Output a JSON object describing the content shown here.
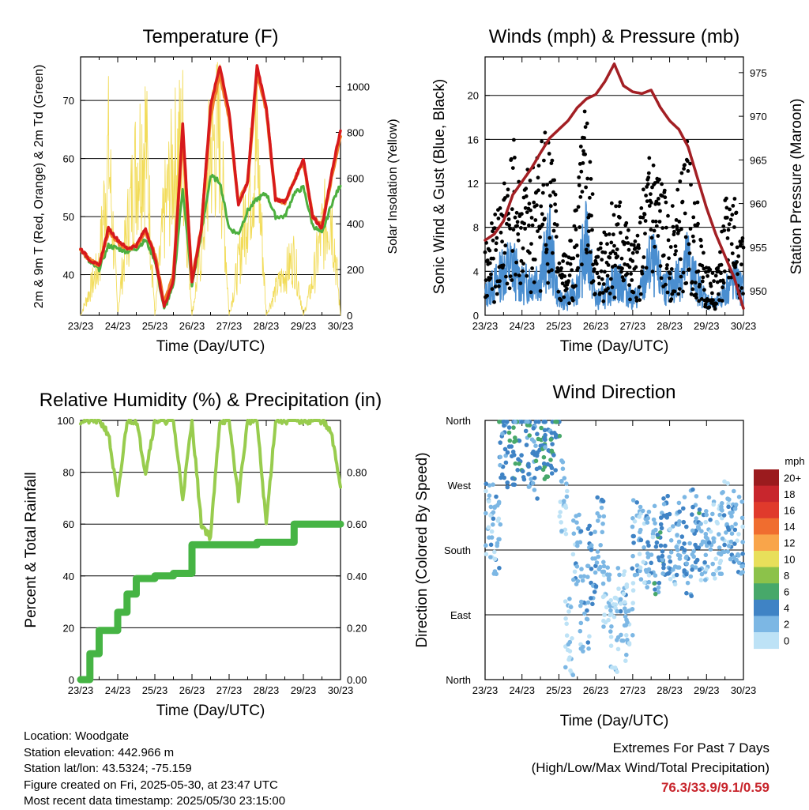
{
  "info": {
    "location": "Location: Woodgate",
    "elevation": "Station elevation: 442.966 m",
    "latlon": "Station lat/lon: 43.5324; -75.159",
    "created": "Figure created on Fri, 2025-05-30, at 23:47 UTC",
    "recent": "Most recent data timestamp: 2025/05/30 23:15:00"
  },
  "extremes": {
    "title": "Extremes For Past 7 Days",
    "subtitle": "(High/Low/Max Wind/Total Precipitation)",
    "values": "76.3/33.9/9.1/0.59"
  },
  "colors": {
    "temp2m": "#d7191c",
    "temp9m": "#f07f2a",
    "dewpoint": "#4daf3f",
    "solar": "#f2dc5a",
    "wind": "#4a8ed0",
    "gust": "#000000",
    "pressure": "#a31f24",
    "rh": "#98cc4e",
    "precip": "#46b444"
  },
  "chart_data": [
    {
      "type": "line",
      "title": "Temperature (F)",
      "xlabel": "Time (Day/UTC)",
      "ylabel": "2m & 9m T (Red, Orange) & 2m Td (Green)",
      "y2label": "Solar Insolation (Yellow)",
      "x_ticks": [
        "23/23",
        "24/23",
        "25/23",
        "26/23",
        "27/23",
        "28/23",
        "29/23",
        "30/23"
      ],
      "ylim": [
        33,
        77.5
      ],
      "yticks": [
        40,
        50,
        60,
        70
      ],
      "y2lim": [
        0,
        1130
      ],
      "y2ticks": [
        0,
        200,
        400,
        600,
        800,
        1000
      ],
      "x": [
        0,
        0.25,
        0.5,
        0.75,
        1.0,
        1.25,
        1.5,
        1.75,
        2.0,
        2.25,
        2.5,
        2.75,
        3.0,
        3.25,
        3.5,
        3.75,
        4.0,
        4.25,
        4.5,
        4.75,
        5.0,
        5.25,
        5.5,
        5.75,
        6.0,
        6.25,
        6.5,
        6.75,
        7.0
      ],
      "series": [
        {
          "name": "2m T",
          "values": [
            44.5,
            42.5,
            41.5,
            48.0,
            46.0,
            44.5,
            45.0,
            48.0,
            43.0,
            34.5,
            39.0,
            66.0,
            38.5,
            48.0,
            69.0,
            76.0,
            68.0,
            52.0,
            56.0,
            76.0,
            69.0,
            53.0,
            52.5,
            56.0,
            60.0,
            50.0,
            48.0,
            57.0,
            65.0
          ]
        },
        {
          "name": "9m T",
          "values": [
            44.5,
            42.5,
            41.5,
            47.5,
            45.5,
            44.5,
            45.0,
            47.5,
            43.5,
            35.0,
            40.0,
            64.0,
            39.0,
            48.0,
            67.5,
            74.5,
            67.0,
            52.5,
            56.0,
            74.5,
            68.5,
            53.0,
            52.5,
            56.0,
            59.5,
            50.0,
            48.5,
            56.5,
            64.0
          ]
        },
        {
          "name": "2m Td",
          "values": [
            44.5,
            42.0,
            41.0,
            45.0,
            44.5,
            44.0,
            44.5,
            46.0,
            42.5,
            34.0,
            38.0,
            55.0,
            38.0,
            47.0,
            57.0,
            56.0,
            48.0,
            47.0,
            51.0,
            53.0,
            54.0,
            50.0,
            50.0,
            54.0,
            55.0,
            48.5,
            47.0,
            52.0,
            55.5
          ]
        },
        {
          "name": "Solar",
          "values": [
            0,
            150,
            300,
            980,
            20,
            500,
            900,
            1100,
            0,
            600,
            900,
            1050,
            0,
            400,
            1000,
            1080,
            0,
            300,
            700,
            1000,
            0,
            150,
            250,
            350,
            0,
            200,
            500,
            650,
            0
          ]
        }
      ]
    },
    {
      "type": "scatter",
      "title": "Winds (mph) & Pressure (mb)",
      "xlabel": "Time (Day/UTC)",
      "ylabel": "Sonic Wind & Gust (Blue, Black)",
      "y2label": "Station Pressure (Maroon)",
      "x_ticks": [
        "23/23",
        "24/23",
        "25/23",
        "26/23",
        "27/23",
        "28/23",
        "29/23",
        "30/23"
      ],
      "ylim": [
        0,
        23.5
      ],
      "yticks": [
        0,
        4,
        8,
        12,
        16,
        20
      ],
      "y2lim": [
        947.2,
        976.8
      ],
      "y2ticks": [
        950,
        955,
        960,
        965,
        970,
        975
      ],
      "x": [
        0,
        0.25,
        0.5,
        0.75,
        1.0,
        1.25,
        1.5,
        1.75,
        2.0,
        2.25,
        2.5,
        2.75,
        3.0,
        3.25,
        3.5,
        3.75,
        4.0,
        4.25,
        4.5,
        4.75,
        5.0,
        5.25,
        5.5,
        5.75,
        6.0,
        6.25,
        6.5,
        6.75,
        7.0
      ],
      "series": [
        {
          "name": "Wind",
          "values": [
            2.0,
            3.0,
            4.5,
            5.0,
            3.0,
            3.5,
            4.0,
            7.0,
            1.5,
            1.5,
            3.0,
            7.5,
            1.5,
            2.0,
            3.5,
            3.0,
            1.5,
            2.5,
            5.5,
            3.5,
            2.5,
            4.0,
            5.5,
            3.0,
            1.5,
            1.0,
            2.5,
            3.5,
            2.5
          ]
        },
        {
          "name": "Gust",
          "values": [
            4.5,
            6.0,
            8.5,
            11.0,
            8.0,
            9.5,
            11.0,
            14.0,
            4.0,
            4.0,
            8.0,
            14.0,
            4.0,
            6.0,
            8.0,
            7.0,
            4.0,
            7.0,
            11.0,
            9.0,
            6.0,
            8.0,
            11.0,
            7.0,
            3.0,
            2.5,
            7.0,
            8.5,
            5.0
          ]
        },
        {
          "name": "Pressure",
          "values": [
            955.8,
            956.5,
            958.0,
            961.0,
            962.5,
            964.0,
            965.8,
            967.5,
            968.5,
            969.5,
            971.0,
            972.0,
            972.5,
            974.0,
            976.0,
            973.5,
            972.8,
            972.6,
            973.0,
            971.0,
            969.5,
            968.5,
            966.5,
            963.0,
            959.5,
            956.5,
            954.0,
            951.5,
            948.0
          ]
        }
      ]
    },
    {
      "type": "line",
      "title": "Relative Humidity (%) & Precipitation (in)",
      "xlabel": "Time (Day/UTC)",
      "ylabel": "Percent & Total Rainfall",
      "x_ticks": [
        "23/23",
        "24/23",
        "25/23",
        "26/23",
        "27/23",
        "28/23",
        "29/23",
        "30/23"
      ],
      "ylim": [
        0,
        100
      ],
      "yticks": [
        0,
        20,
        40,
        60,
        80,
        100
      ],
      "y2lim": [
        0,
        1.0
      ],
      "y2ticks": [
        "0.00",
        "0.20",
        "0.40",
        "0.60",
        "0.80"
      ],
      "x": [
        0,
        0.25,
        0.5,
        0.75,
        1.0,
        1.25,
        1.5,
        1.75,
        2.0,
        2.25,
        2.5,
        2.75,
        3.0,
        3.25,
        3.5,
        3.75,
        4.0,
        4.25,
        4.5,
        4.75,
        5.0,
        5.25,
        5.5,
        5.75,
        6.0,
        6.25,
        6.5,
        6.75,
        7.0
      ],
      "series": [
        {
          "name": "RH",
          "values": [
            100,
            100,
            100,
            95,
            70,
            100,
            100,
            80,
            100,
            100,
            100,
            70,
            100,
            60,
            55,
            100,
            100,
            70,
            100,
            100,
            60,
            100,
            100,
            100,
            100,
            100,
            100,
            95,
            75
          ]
        },
        {
          "name": "Precipitation",
          "values": [
            0.0,
            0.1,
            0.19,
            0.19,
            0.26,
            0.33,
            0.39,
            0.39,
            0.4,
            0.4,
            0.41,
            0.41,
            0.52,
            0.52,
            0.52,
            0.52,
            0.52,
            0.52,
            0.52,
            0.53,
            0.53,
            0.53,
            0.53,
            0.6,
            0.6,
            0.6,
            0.6,
            0.6,
            0.6
          ]
        }
      ]
    },
    {
      "type": "scatter",
      "title": "Wind Direction",
      "xlabel": "Time (Day/UTC)",
      "ylabel": "Direction (Colored By Speed)",
      "x_ticks": [
        "23/23",
        "24/23",
        "25/23",
        "26/23",
        "27/23",
        "28/23",
        "29/23",
        "30/23"
      ],
      "y_ticks": [
        "North",
        "East",
        "South",
        "West",
        "North"
      ],
      "ylim": [
        0,
        360
      ],
      "legend_title": "mph",
      "legend_labels": [
        "20+",
        "18",
        "16",
        "14",
        "12",
        "10",
        "8",
        "6",
        "4",
        "2",
        "0"
      ],
      "legend_colors": [
        "#9b1b1e",
        "#c8262d",
        "#e03a2c",
        "#f06d2f",
        "#f9a54a",
        "#e8df5a",
        "#8cc24a",
        "#47a86a",
        "#3f83c5",
        "#7cb7e4",
        "#bde2f6"
      ],
      "x": [
        0.1,
        0.3,
        0.5,
        0.7,
        0.9,
        1.1,
        1.3,
        1.5,
        1.7,
        1.9,
        2.1,
        2.3,
        2.5,
        2.7,
        2.9,
        3.1,
        3.3,
        3.5,
        3.7,
        3.9,
        4.1,
        4.3,
        4.5,
        4.7,
        4.9,
        5.1,
        5.3,
        5.5,
        5.7,
        5.9,
        6.1,
        6.3,
        6.5,
        6.7,
        6.9
      ],
      "y": [
        220,
        200,
        330,
        320,
        340,
        330,
        300,
        340,
        330,
        345,
        250,
        60,
        180,
        90,
        160,
        200,
        120,
        60,
        100,
        80,
        200,
        180,
        190,
        170,
        200,
        180,
        200,
        160,
        210,
        190,
        200,
        190,
        230,
        210,
        200
      ],
      "speed": [
        2,
        2,
        4,
        5,
        4,
        4,
        3,
        5,
        4,
        5,
        1,
        1,
        2,
        2,
        3,
        2,
        1,
        1,
        2,
        1,
        2,
        1,
        2,
        4,
        3,
        2,
        3,
        3,
        4,
        2,
        2,
        1,
        2,
        3,
        2
      ]
    }
  ]
}
